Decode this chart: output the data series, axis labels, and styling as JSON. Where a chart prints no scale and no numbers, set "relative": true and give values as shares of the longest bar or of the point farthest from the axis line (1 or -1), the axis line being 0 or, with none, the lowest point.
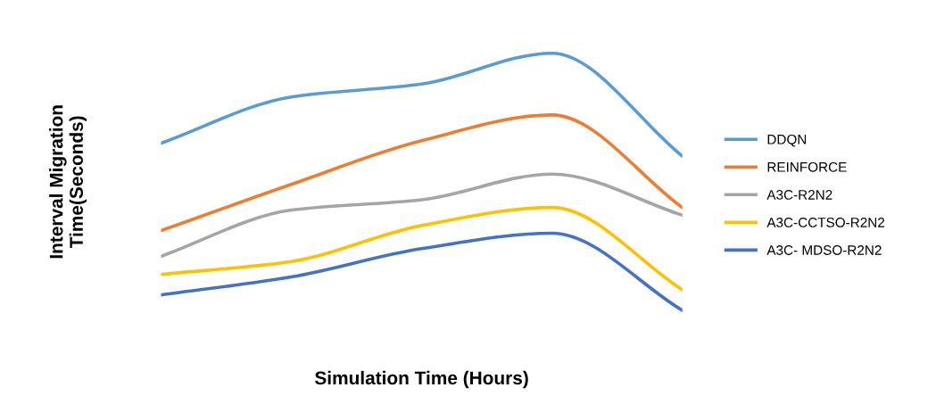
{
  "chart_data": {
    "type": "line",
    "relative": true,
    "xlabel": "Simulation Time (Hours)",
    "ylabel": "Interval Migration\nTime(Seconds)",
    "categories": [
      null,
      null,
      null,
      null,
      null
    ],
    "legend": "right",
    "grid": false,
    "marker": "none",
    "line_style": "solid",
    "series": [
      {
        "name": "DDQN",
        "color": "#5b9bd5",
        "values": [
          0.65,
          0.83,
          0.88,
          1.0,
          0.6
        ]
      },
      {
        "name": "REINFORCE",
        "color": "#ed7d31",
        "values": [
          0.31,
          0.49,
          0.66,
          0.76,
          0.4
        ]
      },
      {
        "name": "A3C-R2N2",
        "color": "#a5a5a5",
        "values": [
          0.21,
          0.39,
          0.43,
          0.53,
          0.37
        ]
      },
      {
        "name": "A3C-CCTSO-R2N2",
        "color": "#ffc000",
        "values": [
          0.14,
          0.19,
          0.33,
          0.4,
          0.08
        ]
      },
      {
        "name": "A3C- MDSO-R2N2",
        "color": "#4472c4",
        "values": [
          0.06,
          0.13,
          0.24,
          0.3,
          0.0
        ]
      }
    ]
  }
}
